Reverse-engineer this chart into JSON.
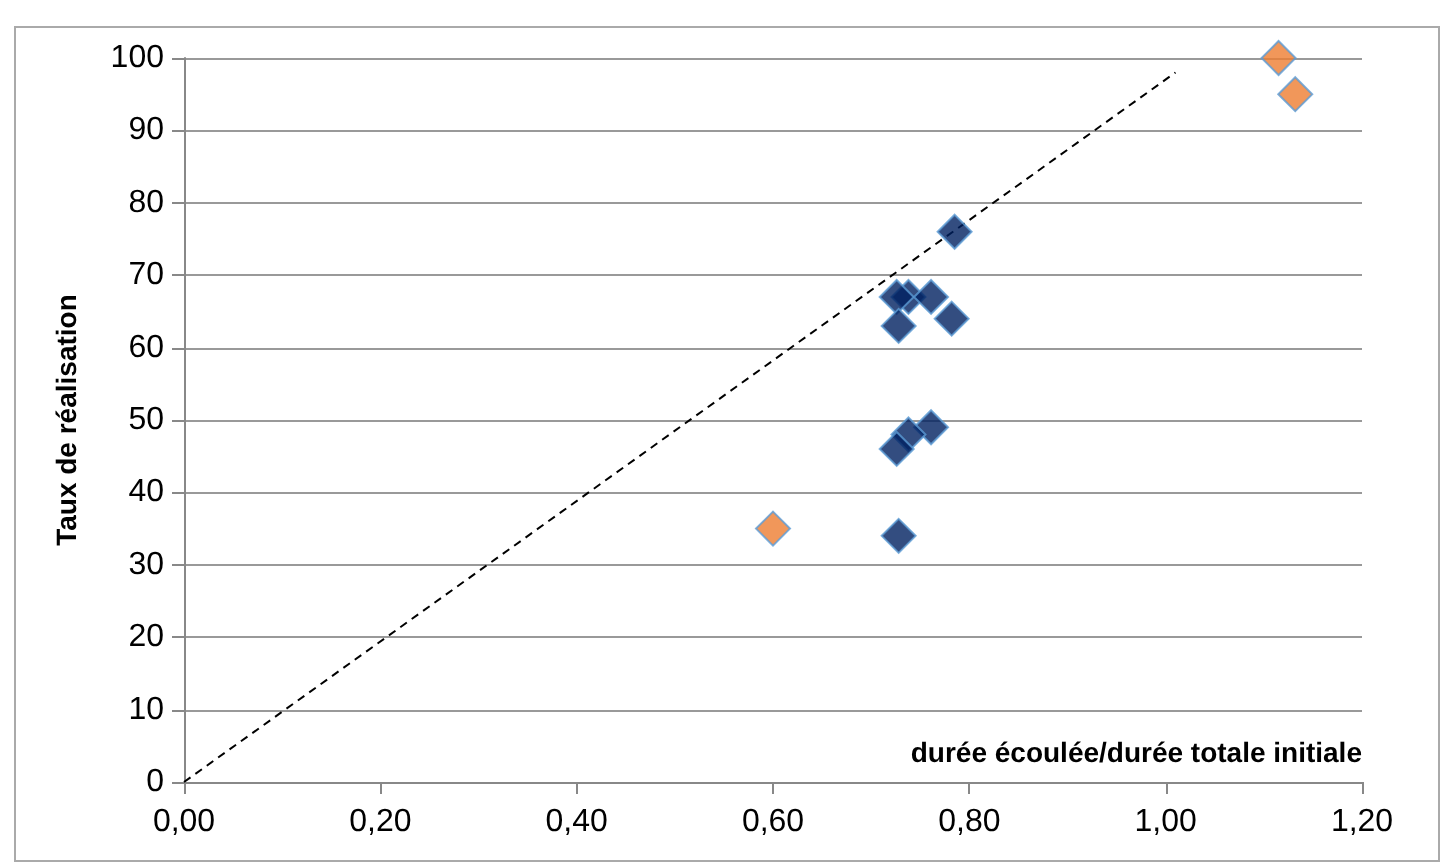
{
  "chart_data": {
    "type": "scatter",
    "xlabel": "durée écoulée/durée totale initiale",
    "ylabel": "Taux de réalisation",
    "marker": "diamond",
    "grid": "y",
    "xlim": [
      0,
      1.2
    ],
    "xticks": [
      {
        "value": 0,
        "label": "0,00"
      },
      {
        "value": 0.2,
        "label": "0,20"
      },
      {
        "value": 0.4,
        "label": "0,40"
      },
      {
        "value": 0.6,
        "label": "0,60"
      },
      {
        "value": 0.8,
        "label": "0,80"
      },
      {
        "value": 1,
        "label": "1,00"
      },
      {
        "value": 1.2,
        "label": "1,20"
      }
    ],
    "ylim": [
      0,
      100
    ],
    "yticks": [
      0,
      10,
      20,
      30,
      40,
      50,
      60,
      70,
      80,
      90,
      100
    ],
    "series": [
      {
        "color": "#ed7d31",
        "x": [
          1.115,
          1.132,
          0.6
        ],
        "values": [
          100,
          95,
          35
        ]
      },
      {
        "color": "#002060",
        "x": [
          0.785,
          0.738,
          0.726,
          0.761,
          0.782,
          0.728,
          0.761,
          0.738,
          0.726,
          0.728
        ],
        "values": [
          76,
          67,
          67,
          67,
          64,
          63,
          49,
          48,
          46,
          34
        ]
      },
      {
        "type": "line",
        "color": "#000000",
        "line_style": "dashed",
        "marker": "none",
        "x": [
          0,
          1.01
        ],
        "values": [
          0,
          98
        ]
      }
    ]
  }
}
